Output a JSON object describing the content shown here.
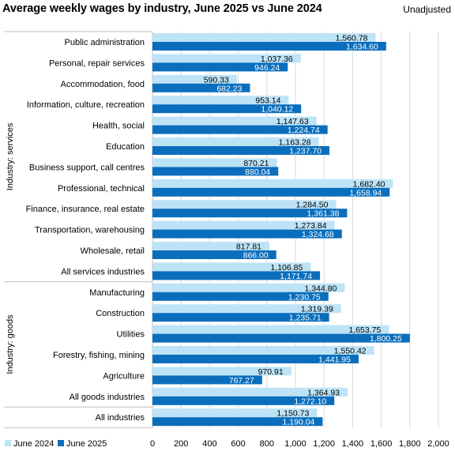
{
  "header": {
    "title": "Average weekly wages by industry, June 2025 vs June 2024",
    "adjustment": "Unadjusted"
  },
  "chart_data": {
    "type": "bar",
    "orientation": "horizontal",
    "title": "Average weekly wages by industry, June 2025 vs June 2024",
    "xlim": [
      0,
      2000
    ],
    "x_ticks": [
      "0",
      "200",
      "400",
      "600",
      "800",
      "1,000",
      "1,200",
      "1,400",
      "1,600",
      "1,800",
      "2,000"
    ],
    "grid": true,
    "legend_position": "bottom-left",
    "colors": {
      "june_2024": "#bde3f7",
      "june_2025": "#0a6ebd"
    },
    "groups": [
      {
        "label": "Industry: services",
        "categories": [
          {
            "name": "Public administration",
            "june_2024": 1560.78,
            "june_2024_label": "1,560.78",
            "june_2025": 1634.6,
            "june_2025_label": "1,634.60"
          },
          {
            "name": "Personal, repair services",
            "june_2024": 1037.36,
            "june_2024_label": "1,037.36",
            "june_2025": 946.24,
            "june_2025_label": "946.24"
          },
          {
            "name": "Accommodation, food",
            "june_2024": 590.33,
            "june_2024_label": "590.33",
            "june_2025": 682.23,
            "june_2025_label": "682.23"
          },
          {
            "name": "Information, culture, recreation",
            "june_2024": 953.14,
            "june_2024_label": "953.14",
            "june_2025": 1040.12,
            "june_2025_label": "1,040.12"
          },
          {
            "name": "Health, social",
            "june_2024": 1147.63,
            "june_2024_label": "1,147.63",
            "june_2025": 1224.74,
            "june_2025_label": "1,224.74"
          },
          {
            "name": "Education",
            "june_2024": 1163.28,
            "june_2024_label": "1,163.28",
            "june_2025": 1237.7,
            "june_2025_label": "1,237.70"
          },
          {
            "name": "Business support, call centres",
            "june_2024": 870.21,
            "june_2024_label": "870.21",
            "june_2025": 880.04,
            "june_2025_label": "880.04"
          },
          {
            "name": "Professional, technical",
            "june_2024": 1682.4,
            "june_2024_label": "1,682.40",
            "june_2025": 1658.94,
            "june_2025_label": "1,658.94"
          },
          {
            "name": "Finance, insurance, real estate",
            "june_2024": 1284.5,
            "june_2024_label": "1,284.50",
            "june_2025": 1361.38,
            "june_2025_label": "1,361.38"
          },
          {
            "name": "Transportation, warehousing",
            "june_2024": 1273.84,
            "june_2024_label": "1,273.84",
            "june_2025": 1324.68,
            "june_2025_label": "1,324.68"
          },
          {
            "name": "Wholesale, retail",
            "june_2024": 817.81,
            "june_2024_label": "817.81",
            "june_2025": 866.0,
            "june_2025_label": "866.00"
          },
          {
            "name": "All services industries",
            "june_2024": 1106.85,
            "june_2024_label": "1,106.85",
            "june_2025": 1171.74,
            "june_2025_label": "1,171.74"
          }
        ]
      },
      {
        "label": "Industry: goods",
        "categories": [
          {
            "name": "Manufacturing",
            "june_2024": 1344.8,
            "june_2024_label": "1,344.80",
            "june_2025": 1230.75,
            "june_2025_label": "1,230.75"
          },
          {
            "name": "Construction",
            "june_2024": 1319.39,
            "june_2024_label": "1,319.39",
            "june_2025": 1235.71,
            "june_2025_label": "1,235.71"
          },
          {
            "name": "Utilities",
            "june_2024": 1653.75,
            "june_2024_label": "1,653.75",
            "june_2025": 1800.25,
            "june_2025_label": "1,800.25"
          },
          {
            "name": "Forestry, fishing, mining",
            "june_2024": 1550.42,
            "june_2024_label": "1,550.42",
            "june_2025": 1441.95,
            "june_2025_label": "1,441.95"
          },
          {
            "name": "Agriculture",
            "june_2024": 970.91,
            "june_2024_label": "970.91",
            "june_2025": 767.27,
            "june_2025_label": "767.27"
          },
          {
            "name": "All goods industries",
            "june_2024": 1364.93,
            "june_2024_label": "1,364.93",
            "june_2025": 1272.1,
            "june_2025_label": "1,272.10"
          }
        ]
      },
      {
        "label": "",
        "categories": [
          {
            "name": "All industries",
            "june_2024": 1150.73,
            "june_2024_label": "1,150.73",
            "june_2025": 1190.04,
            "june_2025_label": "1,190.04"
          }
        ]
      }
    ],
    "series": [
      {
        "key": "june_2024",
        "name": "June 2024"
      },
      {
        "key": "june_2025",
        "name": "June 2025"
      }
    ]
  }
}
